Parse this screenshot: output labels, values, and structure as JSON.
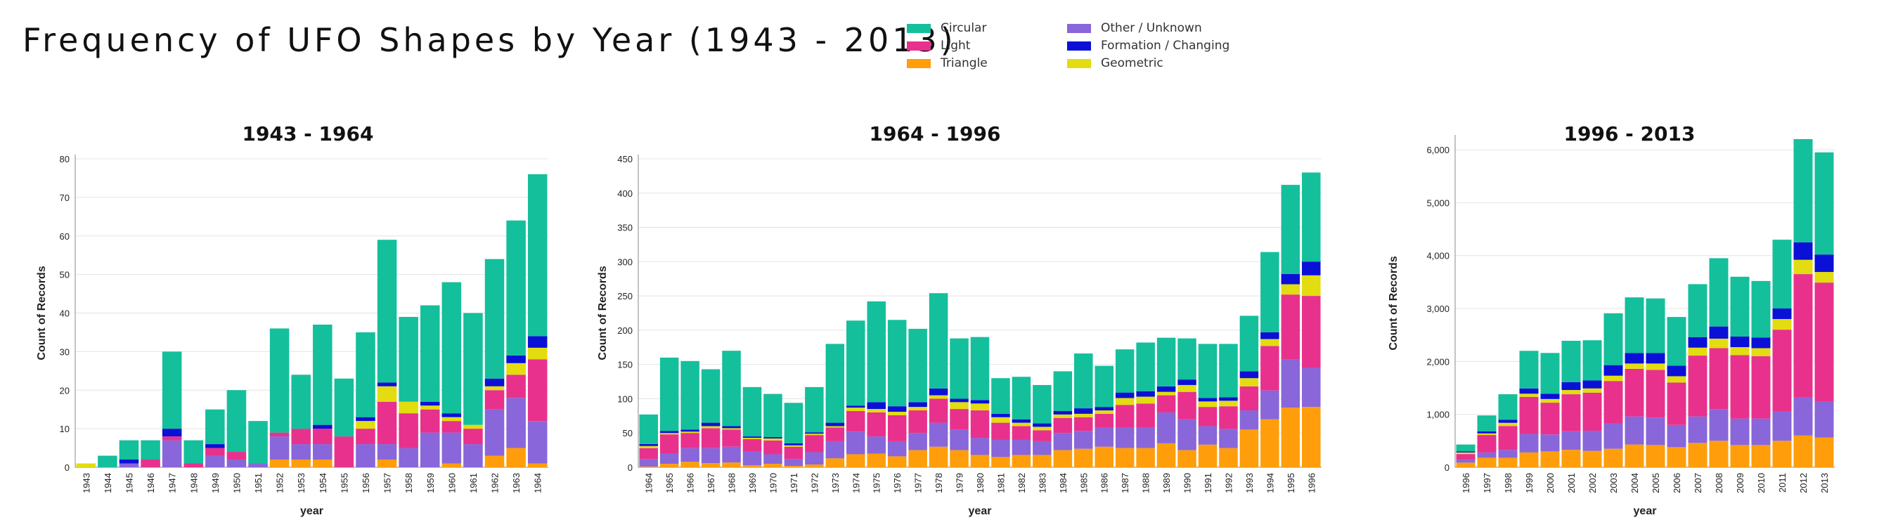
{
  "title": "Frequency of UFO Shapes by Year (1943 - 2013)",
  "colors": {
    "Circular": "#14bf9c",
    "Light": "#e8318c",
    "Triangle": "#ff9e0a",
    "Other / Unknown": "#8966d9",
    "Formation / Changing": "#0a10d6",
    "Geometric": "#e3dc10"
  },
  "legend": [
    {
      "label": "Circular",
      "color": "#14bf9c"
    },
    {
      "label": "Light",
      "color": "#e8318c"
    },
    {
      "label": "Triangle",
      "color": "#ff9e0a"
    },
    {
      "label": "Other / Unknown",
      "color": "#8966d9"
    },
    {
      "label": "Formation / Changing",
      "color": "#0a10d6"
    },
    {
      "label": "Geometric",
      "color": "#e3dc10"
    }
  ],
  "chart_data": [
    {
      "type": "bar",
      "stacked": true,
      "title": "1943 - 1964",
      "xlabel": "year",
      "ylabel": "Count of Records",
      "ylim": [
        0,
        80
      ],
      "yticks": [
        "0",
        "10",
        "20",
        "30",
        "40",
        "50",
        "60",
        "70",
        "80"
      ],
      "yticks_values": [
        0,
        10,
        20,
        30,
        40,
        50,
        60,
        70,
        80
      ],
      "categories": [
        "1943",
        "1944",
        "1945",
        "1946",
        "1947",
        "1948",
        "1949",
        "1950",
        "1951",
        "1952",
        "1953",
        "1954",
        "1955",
        "1956",
        "1957",
        "1958",
        "1959",
        "1960",
        "1961",
        "1962",
        "1963",
        "1964"
      ],
      "series": [
        {
          "name": "Triangle",
          "values": [
            0,
            0,
            0,
            0,
            0,
            0,
            0,
            0,
            0,
            2,
            2,
            2,
            0,
            0,
            2,
            0,
            0,
            1,
            0,
            3,
            5,
            1
          ]
        },
        {
          "name": "Other / Unknown",
          "values": [
            0,
            0,
            1,
            0,
            7,
            0,
            3,
            2,
            1,
            6,
            4,
            4,
            0,
            6,
            4,
            5,
            9,
            8,
            6,
            12,
            13,
            11
          ]
        },
        {
          "name": "Light",
          "values": [
            0,
            0,
            0,
            2,
            1,
            1,
            2,
            2,
            0,
            1,
            4,
            4,
            8,
            4,
            11,
            9,
            6,
            3,
            4,
            5,
            6,
            16
          ]
        },
        {
          "name": "Geometric",
          "values": [
            1,
            0,
            0,
            0,
            0,
            0,
            0,
            0,
            0,
            0,
            0,
            0,
            0,
            2,
            4,
            3,
            1,
            1,
            1,
            1,
            3,
            3
          ]
        },
        {
          "name": "Formation / Changing",
          "values": [
            0,
            0,
            1,
            0,
            2,
            0,
            1,
            0,
            0,
            0,
            0,
            1,
            0,
            1,
            1,
            0,
            1,
            1,
            0,
            2,
            2,
            3
          ]
        },
        {
          "name": "Circular",
          "values": [
            0,
            3,
            5,
            5,
            20,
            6,
            9,
            16,
            11,
            27,
            14,
            26,
            15,
            22,
            37,
            22,
            25,
            34,
            29,
            31,
            35,
            42
          ]
        }
      ]
    },
    {
      "type": "bar",
      "stacked": true,
      "title": "1964 - 1996",
      "xlabel": "year",
      "ylabel": "Count of Records",
      "ylim": [
        0,
        450
      ],
      "yticks": [
        "0",
        "50",
        "100",
        "150",
        "200",
        "250",
        "300",
        "350",
        "400",
        "450"
      ],
      "yticks_values": [
        0,
        50,
        100,
        150,
        200,
        250,
        300,
        350,
        400,
        450
      ],
      "categories": [
        "1964",
        "1965",
        "1966",
        "1967",
        "1968",
        "1969",
        "1970",
        "1971",
        "1972",
        "1973",
        "1974",
        "1975",
        "1976",
        "1977",
        "1978",
        "1979",
        "1980",
        "1981",
        "1982",
        "1983",
        "1984",
        "1985",
        "1986",
        "1987",
        "1988",
        "1989",
        "1990",
        "1991",
        "1992",
        "1993",
        "1994",
        "1995",
        "1996"
      ],
      "series": [
        {
          "name": "Triangle",
          "values": [
            1,
            5,
            8,
            6,
            7,
            3,
            5,
            2,
            4,
            13,
            19,
            20,
            16,
            25,
            30,
            25,
            18,
            15,
            18,
            18,
            25,
            27,
            30,
            28,
            28,
            35,
            25,
            33,
            28,
            55,
            70,
            87,
            88
          ]
        },
        {
          "name": "Other / Unknown",
          "values": [
            11,
            15,
            20,
            22,
            23,
            20,
            14,
            10,
            18,
            25,
            33,
            25,
            22,
            25,
            35,
            30,
            25,
            25,
            22,
            20,
            25,
            26,
            28,
            30,
            30,
            45,
            45,
            27,
            28,
            28,
            42,
            70,
            57
          ]
        },
        {
          "name": "Light",
          "values": [
            16,
            28,
            22,
            29,
            25,
            18,
            20,
            18,
            25,
            20,
            30,
            35,
            38,
            33,
            35,
            30,
            40,
            25,
            20,
            16,
            22,
            20,
            20,
            33,
            35,
            25,
            40,
            28,
            33,
            35,
            65,
            95,
            105
          ]
        },
        {
          "name": "Geometric",
          "values": [
            3,
            2,
            2,
            3,
            2,
            2,
            3,
            2,
            2,
            2,
            5,
            5,
            5,
            5,
            5,
            10,
            10,
            8,
            5,
            5,
            5,
            5,
            5,
            10,
            10,
            5,
            10,
            8,
            8,
            12,
            10,
            15,
            30
          ]
        },
        {
          "name": "Formation / Changing",
          "values": [
            3,
            3,
            3,
            5,
            3,
            2,
            2,
            3,
            2,
            5,
            3,
            10,
            8,
            7,
            10,
            5,
            5,
            5,
            5,
            5,
            5,
            8,
            5,
            8,
            8,
            8,
            8,
            5,
            5,
            10,
            10,
            15,
            20
          ]
        },
        {
          "name": "Circular",
          "values": [
            43,
            107,
            100,
            78,
            110,
            72,
            63,
            59,
            66,
            115,
            124,
            147,
            126,
            107,
            139,
            88,
            92,
            52,
            62,
            56,
            58,
            80,
            60,
            63,
            71,
            71,
            60,
            79,
            78,
            81,
            117,
            130,
            130
          ]
        }
      ]
    },
    {
      "type": "bar",
      "stacked": true,
      "title": "1996 - 2013",
      "xlabel": "year",
      "ylabel": "Count of Records",
      "ylim": [
        0,
        6200
      ],
      "yticks": [
        "0",
        "1,000",
        "2,000",
        "3,000",
        "4,000",
        "5,000",
        "6,000"
      ],
      "yticks_values": [
        0,
        1000,
        2000,
        3000,
        4000,
        5000,
        6000
      ],
      "categories": [
        "1996",
        "1997",
        "1998",
        "1999",
        "2000",
        "2001",
        "2002",
        "2003",
        "2004",
        "2005",
        "2006",
        "2007",
        "2008",
        "2009",
        "2010",
        "2011",
        "2012",
        "2013"
      ],
      "series": [
        {
          "name": "Triangle",
          "values": [
            88,
            180,
            180,
            280,
            300,
            330,
            310,
            350,
            430,
            420,
            380,
            460,
            500,
            420,
            420,
            500,
            600,
            560
          ]
        },
        {
          "name": "Other / Unknown",
          "values": [
            57,
            100,
            150,
            350,
            320,
            350,
            380,
            480,
            530,
            520,
            420,
            500,
            600,
            500,
            500,
            550,
            720,
            680
          ]
        },
        {
          "name": "Light",
          "values": [
            105,
            330,
            450,
            700,
            600,
            700,
            720,
            800,
            900,
            900,
            800,
            1150,
            1150,
            1200,
            1180,
            1550,
            2330,
            2250
          ]
        },
        {
          "name": "Geometric",
          "values": [
            30,
            30,
            60,
            60,
            70,
            80,
            80,
            100,
            100,
            120,
            120,
            150,
            180,
            150,
            150,
            200,
            270,
            200
          ]
        },
        {
          "name": "Formation / Changing",
          "values": [
            20,
            40,
            60,
            100,
            100,
            150,
            150,
            200,
            200,
            200,
            200,
            200,
            230,
            200,
            200,
            200,
            330,
            330
          ]
        },
        {
          "name": "Circular",
          "values": [
            130,
            300,
            480,
            710,
            770,
            780,
            760,
            980,
            1050,
            1030,
            920,
            1000,
            1290,
            1130,
            1070,
            1300,
            1950,
            1930
          ]
        }
      ]
    }
  ]
}
